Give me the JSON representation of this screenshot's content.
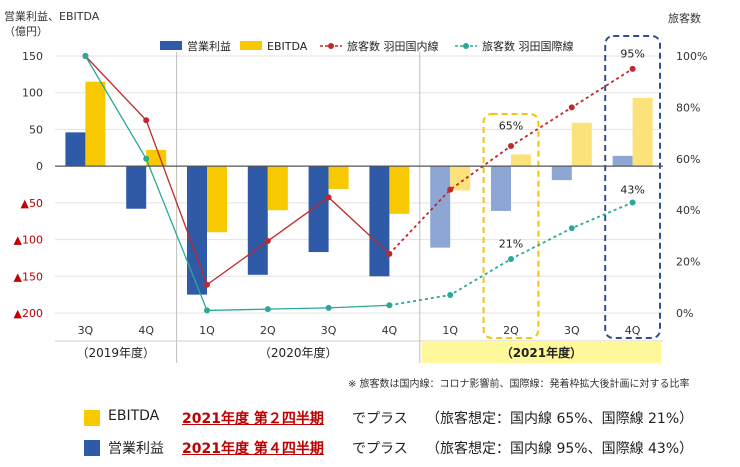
{
  "chart_data": {
    "type": "bar",
    "title": "",
    "y_left_label": "営業利益、EBITDA",
    "y_left_unit": "（億円）",
    "y_right_label": "旅客数",
    "ylim_left": [
      -200,
      150
    ],
    "ylim_right": [
      0,
      100
    ],
    "y_left_ticks": [
      {
        "v": 150,
        "label": "150",
        "neg": false
      },
      {
        "v": 100,
        "label": "100",
        "neg": false
      },
      {
        "v": 50,
        "label": "50",
        "neg": false
      },
      {
        "v": 0,
        "label": "0",
        "neg": false
      },
      {
        "v": -50,
        "label": "▲50",
        "neg": true
      },
      {
        "v": -100,
        "label": "▲100",
        "neg": true
      },
      {
        "v": -150,
        "label": "▲150",
        "neg": true
      },
      {
        "v": -200,
        "label": "▲200",
        "neg": true
      }
    ],
    "y_right_ticks": [
      {
        "v": 100,
        "label": "100%"
      },
      {
        "v": 80,
        "label": "80%"
      },
      {
        "v": 60,
        "label": "60%"
      },
      {
        "v": 40,
        "label": "40%"
      },
      {
        "v": 20,
        "label": "20%"
      },
      {
        "v": 0,
        "label": "0%"
      }
    ],
    "categories": [
      "3Q",
      "4Q",
      "1Q",
      "2Q",
      "3Q",
      "4Q",
      "1Q",
      "2Q",
      "3Q",
      "4Q"
    ],
    "groups": [
      {
        "label": "（2019年度）",
        "start": 0,
        "end": 1
      },
      {
        "label": "（2020年度）",
        "start": 2,
        "end": 5
      },
      {
        "label": "（2021年度）",
        "start": 6,
        "end": 9,
        "highlight": true
      }
    ],
    "projected_from_index": 6,
    "series": [
      {
        "name": "営業利益",
        "kind": "bar",
        "color": "#2f5aa8",
        "color_projected": "#8ea6d3",
        "values": [
          46,
          -58,
          -175,
          -148,
          -117,
          -150,
          -111,
          -61,
          -19,
          14
        ]
      },
      {
        "name": "EBITDA",
        "kind": "bar",
        "color": "#f8c800",
        "color_projected": "#fbe27a",
        "values": [
          115,
          22,
          -90,
          -60,
          -31,
          -65,
          -33,
          16,
          59,
          93
        ]
      },
      {
        "name": "旅客数 羽田国内線",
        "kind": "line",
        "axis": "right",
        "color": "#c0282b",
        "values": [
          100,
          75,
          11,
          28,
          45,
          23,
          48,
          65,
          80,
          95
        ]
      },
      {
        "name": "旅客数 羽田国際線",
        "kind": "line",
        "axis": "right",
        "color": "#2aa89a",
        "values": [
          100,
          60,
          1,
          1.5,
          2,
          3,
          7,
          21,
          33,
          43
        ]
      }
    ],
    "annotations": [
      {
        "text": "65%",
        "category": 7,
        "axis_value": 73
      },
      {
        "text": "21%",
        "category": 7,
        "axis_value": 27
      },
      {
        "text": "95%",
        "category": 9,
        "axis_value": 101
      },
      {
        "text": "43%",
        "category": 9,
        "axis_value": 48
      }
    ],
    "dashed_boxes": [
      {
        "category": 7,
        "color": "#f2c40e"
      },
      {
        "category": 9,
        "color": "#2f4f8f"
      }
    ],
    "legend_position": "top"
  },
  "note": "※ 旅客数は国内線：コロナ影響前、国際線：発着枠拡大後計画に対する比率",
  "footer": [
    {
      "color": "#f8c800",
      "label": "EBITDA",
      "highlight": "2021年度 第２四半期",
      "plus": "でプラス",
      "caption": "（旅客想定：国内線 65%、国際線 21%）"
    },
    {
      "color": "#2f5aa8",
      "label": "営業利益",
      "highlight": "2021年度 第４四半期",
      "plus": "でプラス",
      "caption": "（旅客想定：国内線 95%、国際線 43%）"
    }
  ]
}
